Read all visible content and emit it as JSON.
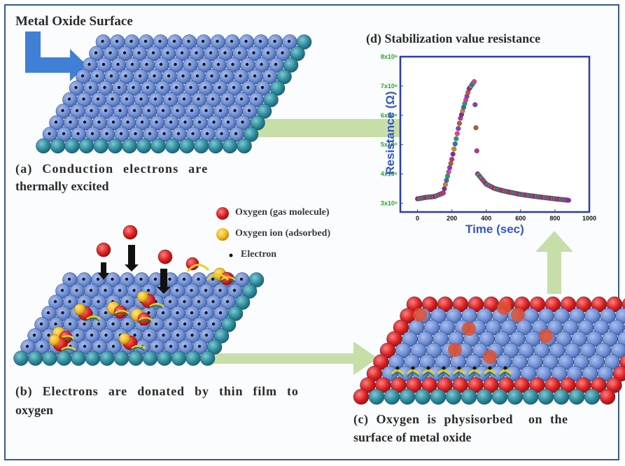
{
  "labels": {
    "metal_oxide_surface": "Metal Oxide Surface",
    "panel_a": "(a) Conduction electrons are thermally excited",
    "panel_a_line1": "(a) Conduction electrons are",
    "panel_a_line2": "thermally excited",
    "panel_b_line1": "(b) Electrons are donated by thin film to",
    "panel_b_line2": "oxygen",
    "panel_c_line1": "(c) Oxygen is physisorbed  on the",
    "panel_c_line2": "surface of metal oxide",
    "panel_d": "(d) Stabilization value resistance"
  },
  "legend": {
    "oxygen_gas": "Oxygen  (gas molecule)",
    "oxygen_ion": "Oxygen ion (adsorbed)",
    "electron": "Electron"
  },
  "colors": {
    "sphere_blue": "#6f8fd4",
    "sphere_teal": "#2c8a9a",
    "oxygen_red": "#d92020",
    "ion_yellow": "#f2b81a",
    "arrow_green": "#c5dca3",
    "arrow_blue": "#3f7fd6",
    "tick_green": "#22aa22",
    "axis_blue": "#3355c8"
  },
  "chart_data": {
    "type": "scatter",
    "title": "(d) Stabilization value resistance",
    "xlabel": "Time (sec)",
    "ylabel": "Resistance (Ω)",
    "xticks": [
      "0",
      "200",
      "400",
      "600",
      "800",
      "1000"
    ],
    "yticks": [
      "3x10⁶",
      "4x10⁶",
      "5x10⁶",
      "6x10⁶",
      "7x10⁶",
      "8x10⁶"
    ],
    "xlim": [
      -100,
      1000
    ],
    "ylim": [
      2700000,
      8000000
    ],
    "series": [
      {
        "x": [
          0,
          50,
          100,
          150,
          200,
          250,
          300,
          330,
          350,
          400,
          450,
          500,
          600,
          700,
          800,
          880
        ],
        "values": [
          3150000,
          3200000,
          3230000,
          3350000,
          4500000,
          5900000,
          6900000,
          7150000,
          4000000,
          3650000,
          3500000,
          3420000,
          3300000,
          3220000,
          3150000,
          3100000
        ]
      }
    ]
  }
}
